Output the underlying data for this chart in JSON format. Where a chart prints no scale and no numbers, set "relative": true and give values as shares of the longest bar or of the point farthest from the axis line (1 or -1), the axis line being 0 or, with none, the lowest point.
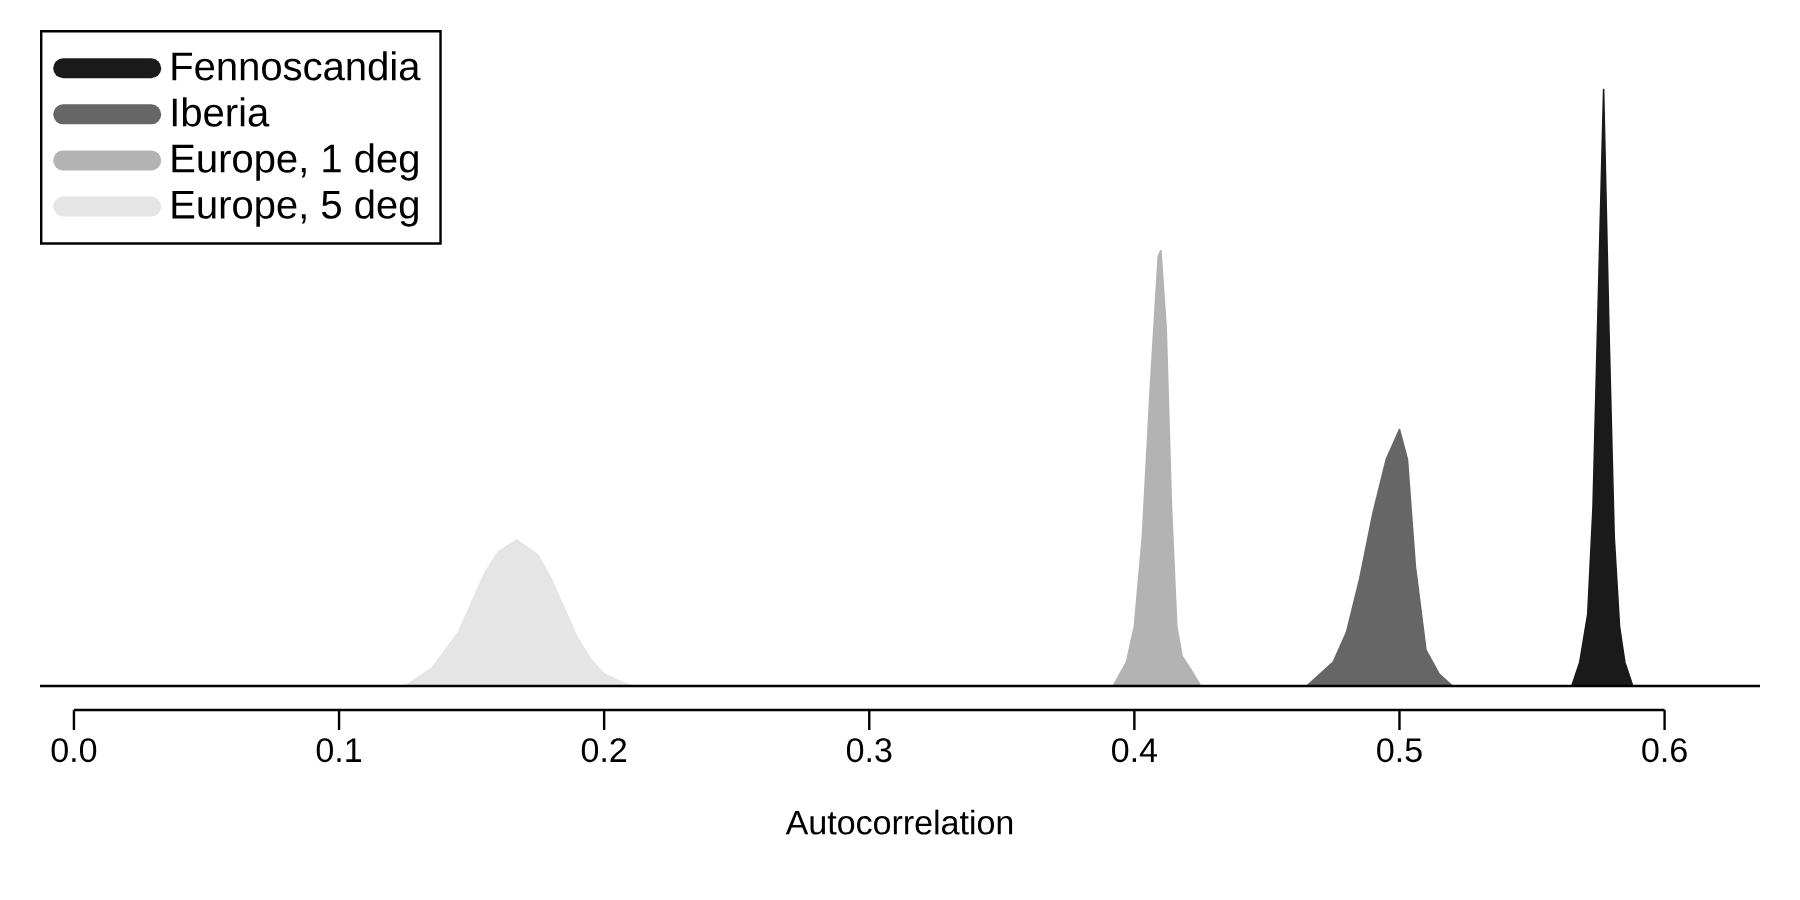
{
  "chart_data": {
    "type": "area",
    "relative": true,
    "xlabel": "Autocorrelation",
    "xlim": [
      -0.0128,
      0.636
    ],
    "xticks": [
      {
        "value": 0,
        "label": "0.0"
      },
      0.1,
      0.2,
      0.3,
      0.4,
      0.5,
      0.6
    ],
    "legend": "top left",
    "series": [
      {
        "name": "Fennoscandia",
        "color": "#1a1a1a",
        "x": [
          0.565,
          0.568,
          0.571,
          0.573,
          0.575,
          0.577,
          0.579,
          0.581,
          0.583,
          0.585,
          0.588
        ],
        "values": [
          0,
          0.04,
          0.12,
          0.3,
          0.65,
          1,
          0.6,
          0.25,
          0.1,
          0.04,
          0
        ]
      },
      {
        "name": "Iberia",
        "color": "#666666",
        "x": [
          0.465,
          0.47,
          0.475,
          0.48,
          0.485,
          0.49,
          0.495,
          0.5,
          0.503,
          0.506,
          0.51,
          0.515,
          0.52
        ],
        "values": [
          0,
          0.02,
          0.04,
          0.09,
          0.18,
          0.29,
          0.38,
          0.43,
          0.38,
          0.2,
          0.06,
          0.02,
          0
        ]
      },
      {
        "name": "Europe, 1 deg",
        "color": "#b3b3b3",
        "x": [
          0.392,
          0.397,
          0.4,
          0.403,
          0.406,
          0.409,
          0.41,
          0.412,
          0.414,
          0.416,
          0.418,
          0.421,
          0.425
        ],
        "values": [
          0,
          0.04,
          0.1,
          0.25,
          0.5,
          0.72,
          0.73,
          0.6,
          0.3,
          0.1,
          0.05,
          0.03,
          0
        ]
      },
      {
        "name": "Europe, 5 deg",
        "color": "#e5e5e5",
        "x": [
          0.125,
          0.135,
          0.145,
          0.15,
          0.155,
          0.16,
          0.167,
          0.175,
          0.18,
          0.185,
          0.19,
          0.195,
          0.2,
          0.21
        ],
        "values": [
          0,
          0.03,
          0.09,
          0.14,
          0.19,
          0.225,
          0.245,
          0.22,
          0.18,
          0.13,
          0.08,
          0.045,
          0.02,
          0
        ]
      }
    ]
  }
}
